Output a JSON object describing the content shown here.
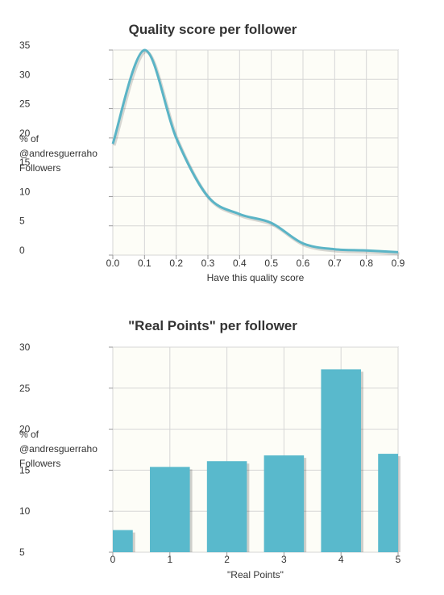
{
  "chart_data": [
    {
      "type": "line",
      "title": "Quality score per follower",
      "xlabel": "Have this quality score",
      "ylabel_lines": [
        "% of",
        "@andresguerraho",
        "Followers"
      ],
      "x": [
        0.0,
        0.1,
        0.2,
        0.3,
        0.4,
        0.5,
        0.6,
        0.7,
        0.8,
        0.9
      ],
      "y": [
        19,
        35,
        20,
        10,
        7,
        5.5,
        2,
        1,
        0.8,
        0.5
      ],
      "x_ticks": [
        "0.0",
        "0.1",
        "0.2",
        "0.3",
        "0.4",
        "0.5",
        "0.6",
        "0.7",
        "0.8",
        "0.9"
      ],
      "y_ticks": [
        "0",
        "5",
        "10",
        "15",
        "20",
        "25",
        "30",
        "35"
      ],
      "xlim": [
        0,
        0.9
      ],
      "ylim": [
        0,
        35
      ],
      "grid": true,
      "color": "#5ab4c6"
    },
    {
      "type": "bar",
      "title": "\"Real Points\" per follower",
      "xlabel": "\"Real Points\"",
      "ylabel_lines": [
        "% of",
        "@andresguerraho",
        "Followers"
      ],
      "categories": [
        "0",
        "1",
        "2",
        "3",
        "4",
        "5"
      ],
      "values": [
        7.7,
        15.4,
        16.1,
        16.8,
        27.3,
        17.0
      ],
      "y_ticks": [
        "5",
        "10",
        "15",
        "20",
        "25",
        "30"
      ],
      "ylim": [
        5,
        30
      ],
      "grid": true,
      "color": "#59b9cc"
    }
  ]
}
